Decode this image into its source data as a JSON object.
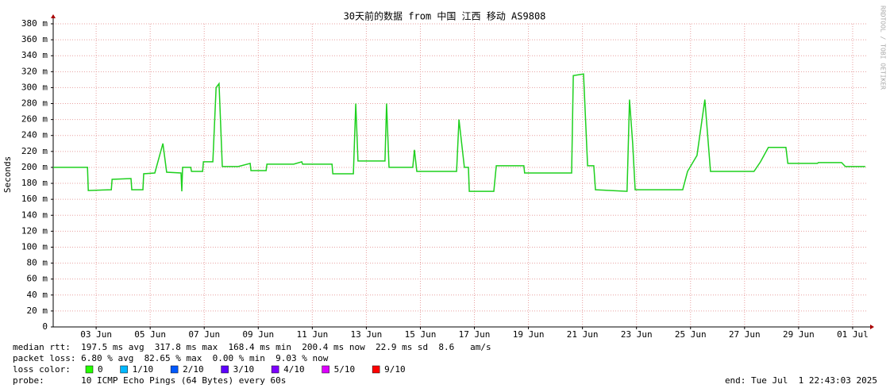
{
  "chart_data": {
    "type": "line",
    "title": "30天前的数据 from 中国 江西 移动 AS9808",
    "ylabel": "Seconds",
    "watermark": "RRDTOOL / TOBI OETIKER",
    "xlim": [
      1.41,
      31.56
    ],
    "xticks": [
      {
        "value": 3,
        "label": "03 Jun"
      },
      {
        "value": 5,
        "label": "05 Jun"
      },
      {
        "value": 7,
        "label": "07 Jun"
      },
      {
        "value": 9,
        "label": "09 Jun"
      },
      {
        "value": 11,
        "label": "11 Jun"
      },
      {
        "value": 13,
        "label": "13 Jun"
      },
      {
        "value": 15,
        "label": "15 Jun"
      },
      {
        "value": 17,
        "label": "17 Jun"
      },
      {
        "value": 19,
        "label": "19 Jun"
      },
      {
        "value": 21,
        "label": "21 Jun"
      },
      {
        "value": 23,
        "label": "23 Jun"
      },
      {
        "value": 25,
        "label": "25 Jun"
      },
      {
        "value": 27,
        "label": "27 Jun"
      },
      {
        "value": 29,
        "label": "29 Jun"
      },
      {
        "value": 31,
        "label": "01 Jul"
      }
    ],
    "ylim": [
      0,
      0.38
    ],
    "yticks": [
      0,
      {
        "value": 0.02,
        "label": "20 m"
      },
      {
        "value": 0.04,
        "label": "40 m"
      },
      {
        "value": 0.06,
        "label": "60 m"
      },
      {
        "value": 0.08,
        "label": "80 m"
      },
      {
        "value": 0.1,
        "label": "100 m"
      },
      {
        "value": 0.12,
        "label": "120 m"
      },
      {
        "value": 0.14,
        "label": "140 m"
      },
      {
        "value": 0.16,
        "label": "160 m"
      },
      {
        "value": 0.18,
        "label": "180 m"
      },
      {
        "value": 0.2,
        "label": "200 m"
      },
      {
        "value": 0.22,
        "label": "220 m"
      },
      {
        "value": 0.24,
        "label": "240 m"
      },
      {
        "value": 0.26,
        "label": "260 m"
      },
      {
        "value": 0.28,
        "label": "280 m"
      },
      {
        "value": 0.3,
        "label": "300 m"
      },
      {
        "value": 0.32,
        "label": "320 m"
      },
      {
        "value": 0.34,
        "label": "340 m"
      },
      {
        "value": 0.36,
        "label": "360 m"
      },
      {
        "value": 0.38,
        "label": "380 m"
      }
    ],
    "grid": true,
    "x": [
      1.41,
      2.68,
      2.71,
      3.56,
      3.59,
      4.29,
      4.32,
      4.73,
      4.76,
      5.17,
      5.47,
      5.61,
      6.14,
      6.17,
      6.2,
      6.5,
      6.53,
      6.94,
      6.97,
      7.32,
      7.44,
      7.55,
      7.67,
      8.26,
      8.7,
      8.73,
      9.29,
      9.32,
      10.31,
      10.61,
      10.64,
      11.73,
      11.76,
      12.52,
      12.61,
      12.69,
      13.69,
      13.75,
      13.84,
      14.72,
      14.78,
      14.87,
      16.34,
      16.43,
      16.63,
      16.78,
      16.81,
      17.72,
      17.81,
      18.83,
      18.86,
      20.6,
      20.66,
      21.04,
      21.19,
      21.42,
      21.48,
      22.65,
      22.74,
      22.86,
      22.95,
      24.71,
      24.89,
      25.24,
      25.53,
      25.74,
      27.35,
      27.59,
      27.88,
      28.53,
      28.6,
      29.7,
      29.73,
      30.59,
      30.73,
      31.47
    ],
    "series": [
      {
        "color": "#1ed01e",
        "values": [
          0.2,
          0.2,
          0.171,
          0.172,
          0.185,
          0.186,
          0.172,
          0.172,
          0.192,
          0.193,
          0.23,
          0.194,
          0.193,
          0.17,
          0.2,
          0.2,
          0.195,
          0.195,
          0.207,
          0.207,
          0.3,
          0.305,
          0.201,
          0.201,
          0.205,
          0.196,
          0.196,
          0.204,
          0.204,
          0.207,
          0.204,
          0.204,
          0.192,
          0.192,
          0.28,
          0.208,
          0.208,
          0.28,
          0.2,
          0.2,
          0.222,
          0.195,
          0.195,
          0.26,
          0.2,
          0.2,
          0.17,
          0.17,
          0.202,
          0.202,
          0.193,
          0.193,
          0.315,
          0.317,
          0.202,
          0.202,
          0.172,
          0.17,
          0.285,
          0.23,
          0.172,
          0.172,
          0.195,
          0.215,
          0.285,
          0.195,
          0.195,
          0.207,
          0.225,
          0.225,
          0.205,
          0.205,
          0.206,
          0.206,
          0.201,
          0.201
        ]
      }
    ],
    "stats_lines": [
      "median rtt:  197.5 ms avg  317.8 ms max  168.4 ms min  200.4 ms now  22.9 ms sd  8.6   am/s",
      "packet loss: 6.80 % avg  82.65 % max  0.00 % min  9.03 % now"
    ],
    "loss_color_label": "loss color:",
    "loss_colors": [
      {
        "label": "0",
        "color": "#26ff00"
      },
      {
        "label": "1/10",
        "color": "#00b8ff"
      },
      {
        "label": "2/10",
        "color": "#0059ff"
      },
      {
        "label": "3/10",
        "color": "#5e00ff"
      },
      {
        "label": "4/10",
        "color": "#7e00ff"
      },
      {
        "label": "5/10",
        "color": "#dd00ff"
      },
      {
        "label": "9/10",
        "color": "#ff0000"
      }
    ],
    "probe": "probe:       10 ICMP Echo Pings (64 Bytes) every 60s",
    "end": "end: Tue Jul  1 22:43:03 2025"
  }
}
